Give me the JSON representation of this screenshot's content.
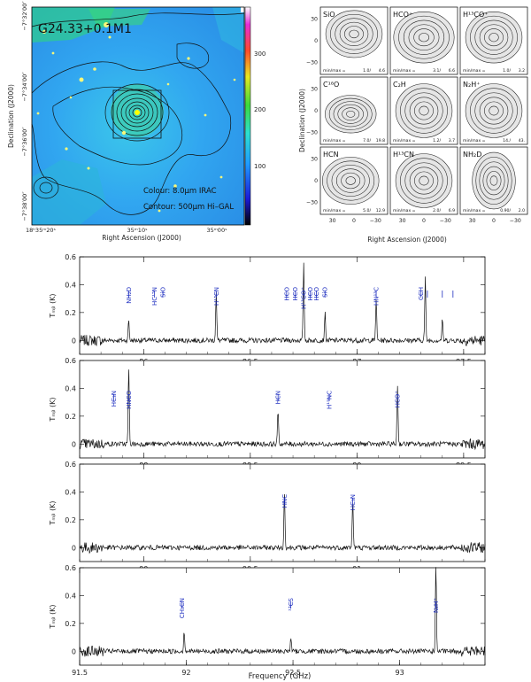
{
  "map": {
    "title": "G24.33+0.1M1",
    "colour_label": "Colour: 8.0μm IRAC",
    "contour_label": "Contour: 500μm Hi–GAL",
    "xlabel": "Right Ascension (J2000)",
    "ylabel": "Declination (J2000)",
    "x_ticks": [
      "18ʰ35ᵐ20ˢ",
      "35ᵐ10ˢ",
      "35ᵐ00ˢ"
    ],
    "y_ticks": [
      "−7°32′00″",
      "−7°34′00″",
      "−7°36′00″",
      "−7°38′00″"
    ],
    "colorbar_ticks": [
      "100",
      "200",
      "300"
    ],
    "colors": {
      "background": "#31a6f0",
      "peak": "#ffff00"
    }
  },
  "grid": {
    "ylabel": "Declination (J2000)",
    "xlabel": "Right Ascension (J2000)",
    "x_ticks": [
      "30",
      "0",
      "−30"
    ],
    "y_ticks": [
      "30",
      "0",
      "−30"
    ],
    "panels": [
      {
        "mol": "SiO",
        "minmax_label": "min/max =",
        "min": "1.0/",
        "max": "4.6"
      },
      {
        "mol": "HCO⁺",
        "minmax_label": "min/max =",
        "min": "3.1/",
        "max": "6.6"
      },
      {
        "mol": "H¹³CO⁺",
        "minmax_label": "min/max =",
        "min": "1.0/",
        "max": "3.2"
      },
      {
        "mol": "C¹⁸O",
        "minmax_label": "min/max =",
        "min": "7.0/",
        "max": "19.8"
      },
      {
        "mol": "C₂H",
        "minmax_label": "min/max =",
        "min": "1.2/",
        "max": "3.7"
      },
      {
        "mol": "N₂H⁺",
        "minmax_label": "min/max =",
        "min": "14./",
        "max": "43."
      },
      {
        "mol": "HCN",
        "minmax_label": "min/max =",
        "min": "5.0/",
        "max": "12.9"
      },
      {
        "mol": "H¹³CN",
        "minmax_label": "min/max =",
        "min": "2.0/",
        "max": "6.9"
      },
      {
        "mol": "NH₂D",
        "minmax_label": "min/max =",
        "min": "0.90/",
        "max": "2.0"
      }
    ]
  },
  "chart_data": [
    {
      "type": "line",
      "xlim": [
        85.7,
        87.6
      ],
      "ylim": [
        -0.1,
        0.6
      ],
      "x_ticks": [
        86,
        86.5,
        87,
        87.5
      ],
      "y_ticks": [
        0,
        0.2,
        0.4,
        0.6
      ],
      "ylabel": "Tₘᵦ (K)",
      "peaks": [
        {
          "x": 85.93,
          "y": 0.15
        },
        {
          "x": 86.34,
          "y": 0.35
        },
        {
          "x": 86.75,
          "y": 0.55
        },
        {
          "x": 86.85,
          "y": 0.2
        },
        {
          "x": 87.09,
          "y": 0.3
        },
        {
          "x": 87.32,
          "y": 0.45
        },
        {
          "x": 87.4,
          "y": 0.15
        }
      ],
      "lines": [
        {
          "x": 85.93,
          "label": "NH₂D"
        },
        {
          "x": 86.05,
          "label": "HC¹⁵N"
        },
        {
          "x": 86.09,
          "label": "SiO"
        },
        {
          "x": 86.34,
          "label": "H¹³CN"
        },
        {
          "x": 86.67,
          "label": "HCO"
        },
        {
          "x": 86.71,
          "label": "HCO"
        },
        {
          "x": 86.75,
          "label": "H¹³CO⁺"
        },
        {
          "x": 86.78,
          "label": "HCO"
        },
        {
          "x": 86.81,
          "label": "HCO"
        },
        {
          "x": 86.85,
          "label": "SiO"
        },
        {
          "x": 87.09,
          "label": "HN¹³C"
        },
        {
          "x": 87.3,
          "label": "CCH"
        },
        {
          "x": 87.33,
          "label": ""
        },
        {
          "x": 87.4,
          "label": ""
        },
        {
          "x": 87.45,
          "label": ""
        }
      ]
    },
    {
      "type": "line",
      "xlim": [
        87.7,
        89.6
      ],
      "ylim": [
        -0.1,
        0.6
      ],
      "x_ticks": [
        88,
        88.5,
        89,
        89.5
      ],
      "y_ticks": [
        0,
        0.2,
        0.4,
        0.6
      ],
      "ylabel": "Tₘᵦ (K)",
      "peaks": [
        {
          "x": 87.93,
          "y": 0.55
        },
        {
          "x": 88.63,
          "y": 0.25
        },
        {
          "x": 89.19,
          "y": 0.42
        }
      ],
      "lines": [
        {
          "x": 87.86,
          "label": "HC₃N"
        },
        {
          "x": 87.93,
          "label": "HNCO"
        },
        {
          "x": 88.63,
          "label": "HCN"
        },
        {
          "x": 88.87,
          "label": "H¹⁵NC"
        },
        {
          "x": 89.19,
          "label": "HCO⁺"
        }
      ]
    },
    {
      "type": "line",
      "xlim": [
        89.7,
        91.6
      ],
      "ylim": [
        -0.1,
        0.6
      ],
      "x_ticks": [
        90,
        90.5,
        91
      ],
      "y_ticks": [
        0,
        0.2,
        0.4,
        0.6
      ],
      "ylabel": "Tₘᵦ (K)",
      "peaks": [
        {
          "x": 90.66,
          "y": 0.4
        },
        {
          "x": 90.98,
          "y": 0.35
        }
      ],
      "lines": [
        {
          "x": 90.66,
          "label": "HNC"
        },
        {
          "x": 90.98,
          "label": "HC₃N"
        }
      ]
    },
    {
      "type": "line",
      "xlim": [
        91.5,
        93.4
      ],
      "ylim": [
        -0.1,
        0.6
      ],
      "x_ticks": [
        91.5,
        92,
        92.5,
        93
      ],
      "y_ticks": [
        0,
        0.2,
        0.4,
        0.6
      ],
      "ylabel": "Tₘᵦ (K)",
      "xlabel": "Frequency (GHz)",
      "peaks": [
        {
          "x": 91.99,
          "y": 0.15
        },
        {
          "x": 92.49,
          "y": 0.1
        },
        {
          "x": 93.17,
          "y": 0.62
        }
      ],
      "lines": [
        {
          "x": 91.98,
          "label": "CH₃CN"
        },
        {
          "x": 92.49,
          "label": "¹³CS"
        },
        {
          "x": 93.17,
          "label": "N₂H⁺"
        }
      ]
    }
  ]
}
